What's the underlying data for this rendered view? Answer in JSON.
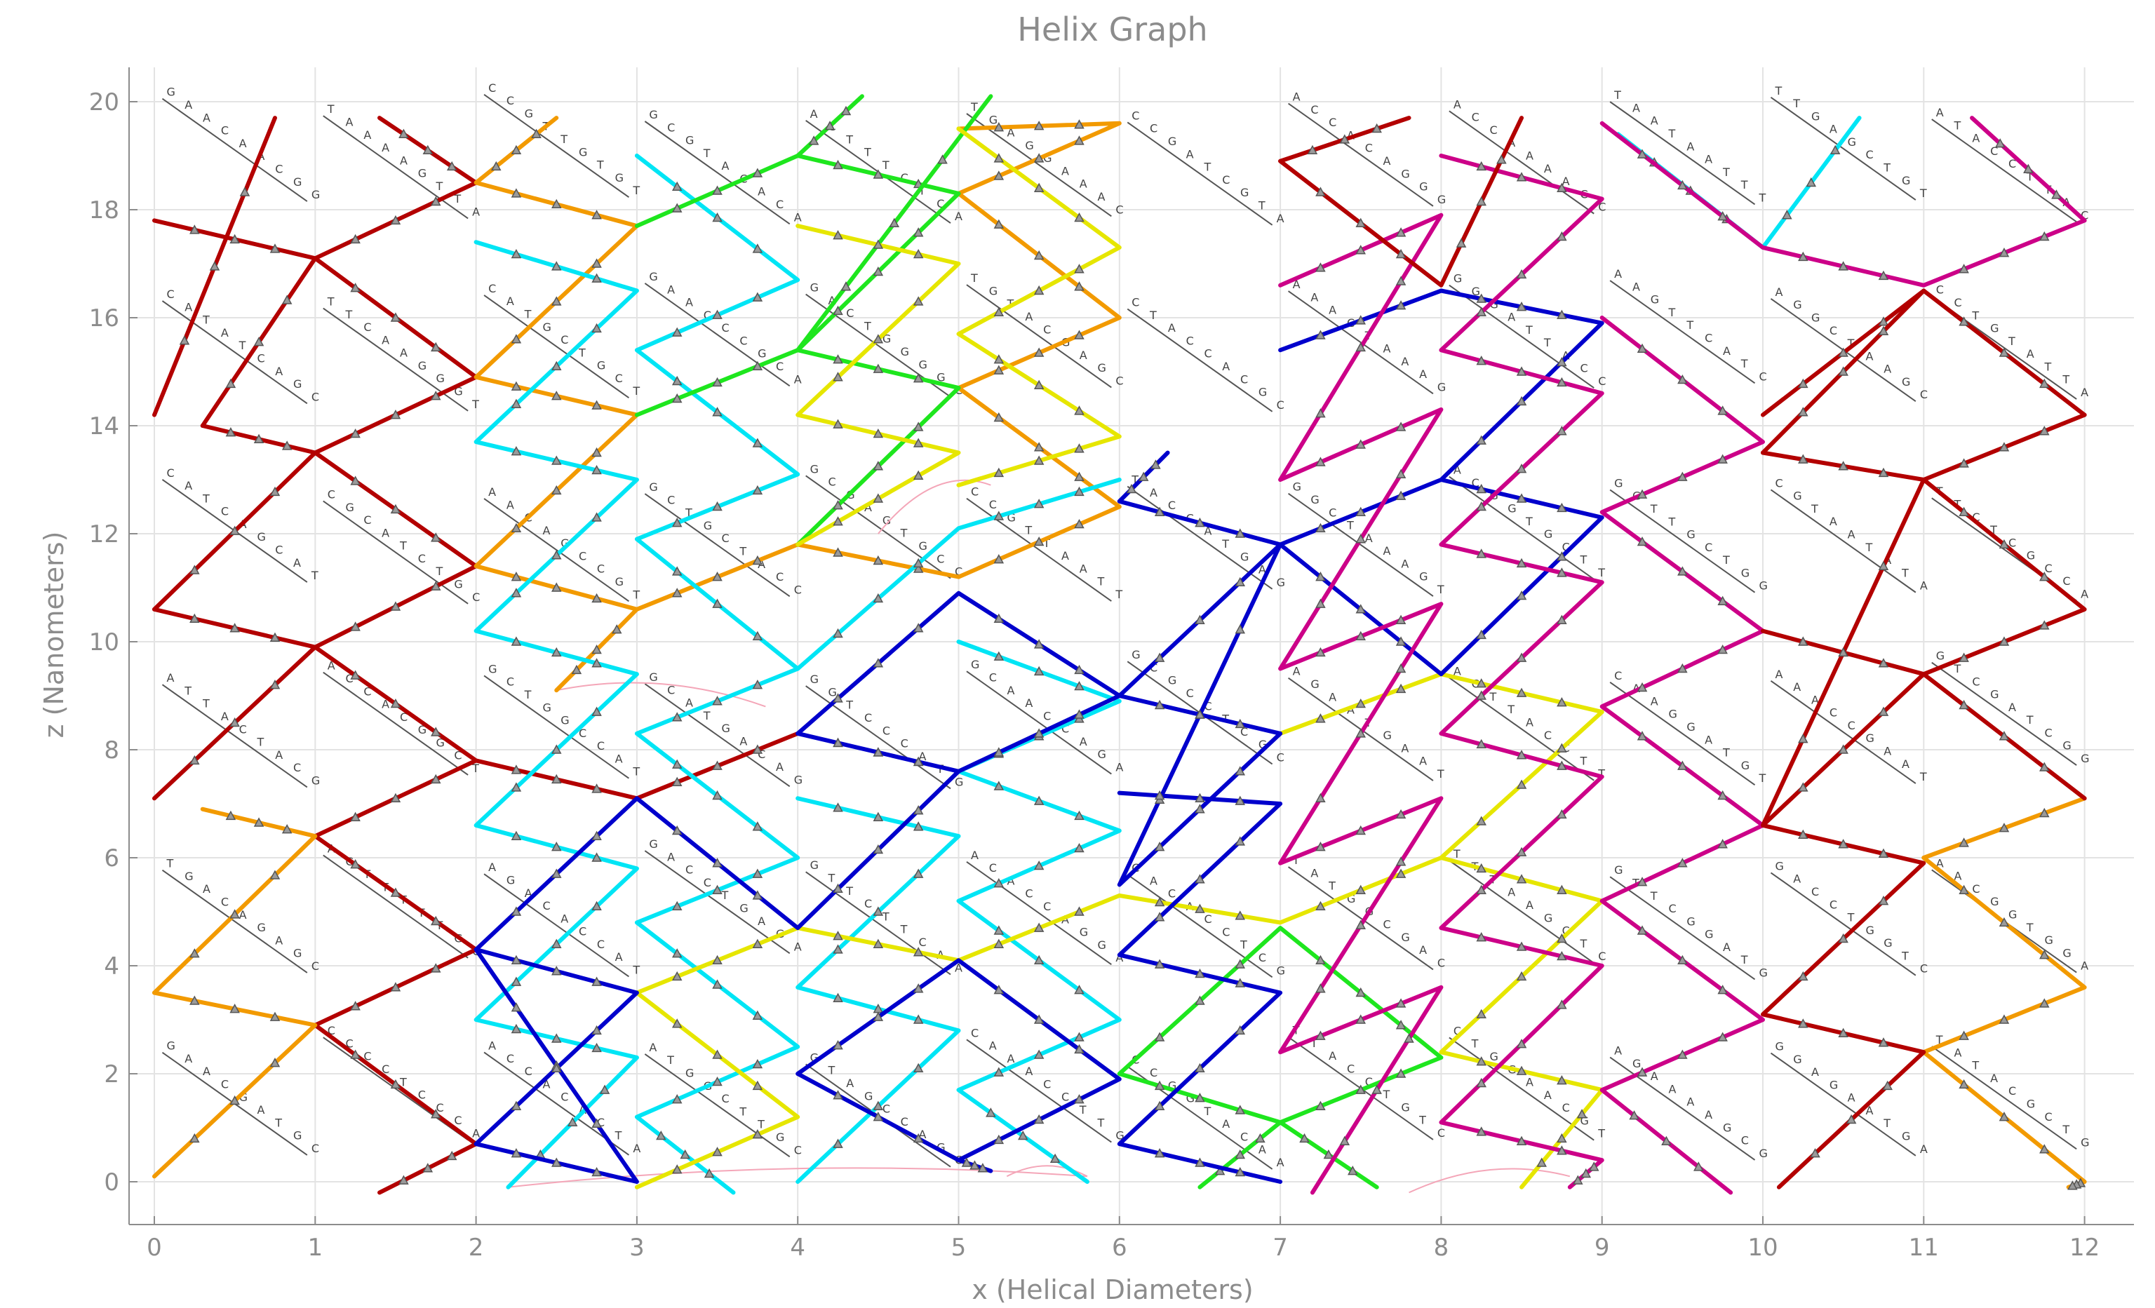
{
  "chart_data": {
    "type": "line",
    "title": "Helix Graph",
    "xlabel": "x (Helical Diameters)",
    "ylabel": "z (Nanometers)",
    "xlim": [
      -0.15,
      12.15
    ],
    "ylim": [
      -0.7,
      20.6
    ],
    "xticks": [
      0,
      1,
      2,
      3,
      4,
      5,
      6,
      7,
      8,
      9,
      10,
      11,
      12
    ],
    "yticks": [
      0,
      2,
      4,
      6,
      8,
      10,
      12,
      14,
      16,
      18,
      20
    ],
    "grid": true,
    "series": [
      {
        "color": "#b30000",
        "values": [
          [
            0.0,
            14.2
          ],
          [
            0.75,
            19.7
          ]
        ]
      },
      {
        "color": "#b30000",
        "values": [
          [
            0.0,
            17.8
          ],
          [
            1.0,
            17.1
          ],
          [
            0.3,
            14.0
          ]
        ]
      },
      {
        "color": "#b30000",
        "values": [
          [
            0.0,
            10.6
          ],
          [
            1.0,
            13.5
          ],
          [
            0.3,
            14.0
          ]
        ]
      },
      {
        "color": "#b30000",
        "values": [
          [
            0.0,
            7.1
          ],
          [
            1.0,
            9.9
          ]
        ]
      },
      {
        "color": "#b30000",
        "values": [
          [
            0.0,
            10.6
          ],
          [
            1.0,
            9.9
          ],
          [
            2.0,
            7.8
          ],
          [
            3.0,
            7.1
          ],
          [
            4.0,
            8.3
          ]
        ]
      },
      {
        "color": "#b30000",
        "values": [
          [
            1.4,
            19.7
          ],
          [
            2.0,
            18.5
          ],
          [
            1.0,
            17.1
          ],
          [
            2.0,
            14.9
          ],
          [
            1.0,
            13.5
          ],
          [
            2.0,
            11.4
          ],
          [
            1.0,
            9.9
          ]
        ]
      },
      {
        "color": "#b30000",
        "values": [
          [
            1.0,
            6.4
          ],
          [
            2.0,
            7.8
          ]
        ]
      },
      {
        "color": "#b30000",
        "values": [
          [
            1.0,
            6.4
          ],
          [
            2.0,
            4.3
          ],
          [
            1.0,
            2.9
          ],
          [
            2.0,
            0.7
          ],
          [
            1.4,
            -0.2
          ]
        ]
      },
      {
        "color": "#f29a00",
        "values": [
          [
            0.0,
            3.5
          ],
          [
            1.0,
            2.9
          ],
          [
            0.0,
            0.1
          ]
        ]
      },
      {
        "color": "#f29a00",
        "values": [
          [
            0.0,
            3.5
          ],
          [
            1.0,
            6.4
          ],
          [
            0.3,
            6.9
          ]
        ]
      },
      {
        "color": "#f29a00",
        "values": [
          [
            2.5,
            19.7
          ],
          [
            2.0,
            18.5
          ],
          [
            3.0,
            17.7
          ],
          [
            2.0,
            14.9
          ],
          [
            3.0,
            14.2
          ],
          [
            2.0,
            11.4
          ],
          [
            3.0,
            10.6
          ],
          [
            2.5,
            9.1
          ]
        ]
      },
      {
        "color": "#f29a00",
        "values": [
          [
            3.0,
            10.6
          ],
          [
            4.0,
            11.8
          ],
          [
            5.0,
            11.2
          ],
          [
            6.0,
            12.5
          ],
          [
            5.0,
            14.7
          ],
          [
            6.0,
            16.0
          ],
          [
            5.0,
            18.3
          ],
          [
            6.0,
            19.6
          ],
          [
            5.0,
            19.5
          ]
        ]
      },
      {
        "color": "#00e5f5",
        "values": [
          [
            2.0,
            17.4
          ],
          [
            3.0,
            16.5
          ],
          [
            2.0,
            13.7
          ],
          [
            3.0,
            13.0
          ],
          [
            2.0,
            10.2
          ],
          [
            3.0,
            9.4
          ],
          [
            2.0,
            6.6
          ],
          [
            3.0,
            5.8
          ],
          [
            2.0,
            3.0
          ],
          [
            3.0,
            2.3
          ],
          [
            2.2,
            -0.1
          ]
        ]
      },
      {
        "color": "#00e5f5",
        "values": [
          [
            3.0,
            19.0
          ],
          [
            4.0,
            16.7
          ],
          [
            3.0,
            15.4
          ],
          [
            4.0,
            13.1
          ],
          [
            3.0,
            11.9
          ],
          [
            4.0,
            9.5
          ],
          [
            3.0,
            8.3
          ],
          [
            4.0,
            6.0
          ],
          [
            3.0,
            4.8
          ],
          [
            4.0,
            2.5
          ],
          [
            3.0,
            1.2
          ],
          [
            3.6,
            -0.2
          ]
        ]
      },
      {
        "color": "#00e5f5",
        "values": [
          [
            4.0,
            9.5
          ],
          [
            5.0,
            12.1
          ],
          [
            6.0,
            13.0
          ]
        ]
      },
      {
        "color": "#00e5f5",
        "values": [
          [
            4.0,
            7.1
          ],
          [
            5.0,
            6.4
          ],
          [
            4.0,
            3.6
          ],
          [
            5.0,
            2.8
          ],
          [
            4.0,
            0.0
          ]
        ]
      },
      {
        "color": "#00e5f5",
        "values": [
          [
            5.0,
            10.0
          ],
          [
            6.0,
            8.9
          ],
          [
            5.0,
            7.6
          ],
          [
            6.0,
            6.5
          ],
          [
            5.0,
            5.2
          ],
          [
            6.0,
            3.0
          ],
          [
            5.0,
            1.7
          ],
          [
            5.8,
            0.0
          ]
        ]
      },
      {
        "color": "#00e5f5",
        "values": [
          [
            9.1,
            19.4
          ],
          [
            10.0,
            17.3
          ],
          [
            10.6,
            19.7
          ]
        ]
      },
      {
        "color": "#1ee61e",
        "values": [
          [
            3.0,
            17.7
          ],
          [
            4.0,
            19.0
          ],
          [
            5.0,
            18.3
          ],
          [
            4.0,
            15.4
          ],
          [
            5.0,
            14.7
          ],
          [
            4.0,
            11.8
          ]
        ]
      },
      {
        "color": "#1ee61e",
        "values": [
          [
            3.0,
            14.2
          ],
          [
            4.0,
            15.4
          ],
          [
            5.2,
            20.1
          ]
        ]
      },
      {
        "color": "#1ee61e",
        "values": [
          [
            4.0,
            19.0
          ],
          [
            4.4,
            20.1
          ]
        ]
      },
      {
        "color": "#1ee61e",
        "values": [
          [
            6.5,
            -0.1
          ],
          [
            7.0,
            1.1
          ],
          [
            8.0,
            2.3
          ],
          [
            7.0,
            4.7
          ],
          [
            6.0,
            2.0
          ],
          [
            7.0,
            1.1
          ],
          [
            7.6,
            -0.1
          ]
        ]
      },
      {
        "color": "#e6e600",
        "values": [
          [
            4.0,
            17.7
          ],
          [
            5.0,
            17.0
          ],
          [
            4.0,
            14.2
          ],
          [
            5.0,
            13.5
          ],
          [
            4.0,
            11.8
          ]
        ]
      },
      {
        "color": "#e6e600",
        "values": [
          [
            5.0,
            19.5
          ],
          [
            6.0,
            17.3
          ],
          [
            5.0,
            15.7
          ],
          [
            6.0,
            13.8
          ],
          [
            5.0,
            12.9
          ]
        ]
      },
      {
        "color": "#e6e600",
        "values": [
          [
            3.0,
            3.5
          ],
          [
            4.0,
            4.7
          ],
          [
            5.0,
            4.1
          ],
          [
            6.0,
            5.3
          ],
          [
            7.0,
            4.8
          ],
          [
            8.0,
            6.0
          ],
          [
            9.0,
            5.2
          ],
          [
            8.0,
            2.4
          ],
          [
            9.0,
            1.7
          ],
          [
            8.5,
            -0.1
          ]
        ]
      },
      {
        "color": "#e6e600",
        "values": [
          [
            3.0,
            3.5
          ],
          [
            4.0,
            1.2
          ],
          [
            3.0,
            -0.1
          ]
        ]
      },
      {
        "color": "#e6e600",
        "values": [
          [
            7.0,
            8.3
          ],
          [
            8.0,
            9.4
          ],
          [
            9.0,
            8.7
          ],
          [
            8.0,
            6.0
          ]
        ]
      },
      {
        "color": "#0000cc",
        "values": [
          [
            2.0,
            0.7
          ],
          [
            3.0,
            0.0
          ],
          [
            2.0,
            4.3
          ],
          [
            3.0,
            3.5
          ],
          [
            2.0,
            0.7
          ]
        ]
      },
      {
        "color": "#0000cc",
        "values": [
          [
            2.0,
            4.3
          ],
          [
            3.0,
            7.1
          ],
          [
            4.0,
            4.7
          ],
          [
            5.0,
            7.6
          ],
          [
            4.0,
            8.3
          ],
          [
            5.0,
            7.6
          ],
          [
            6.0,
            9.0
          ],
          [
            5.0,
            10.9
          ],
          [
            4.0,
            8.3
          ]
        ]
      },
      {
        "color": "#0000cc",
        "values": [
          [
            4.0,
            2.0
          ],
          [
            5.0,
            4.1
          ],
          [
            6.0,
            1.9
          ],
          [
            5.0,
            0.4
          ],
          [
            4.0,
            2.0
          ]
        ]
      },
      {
        "color": "#0000cc",
        "values": [
          [
            5.2,
            0.2
          ],
          [
            5.0,
            0.4
          ]
        ]
      },
      {
        "color": "#0000cc",
        "values": [
          [
            6.0,
            12.6
          ],
          [
            7.0,
            11.8
          ],
          [
            6.0,
            9.0
          ],
          [
            7.0,
            8.3
          ],
          [
            6.0,
            5.5
          ],
          [
            7.0,
            11.8
          ],
          [
            8.0,
            13.0
          ],
          [
            9.0,
            12.3
          ],
          [
            8.0,
            9.4
          ],
          [
            7.0,
            11.8
          ]
        ]
      },
      {
        "color": "#0000cc",
        "values": [
          [
            6.0,
            12.6
          ],
          [
            6.3,
            13.5
          ]
        ]
      },
      {
        "color": "#0000cc",
        "values": [
          [
            7.0,
            15.4
          ],
          [
            8.0,
            16.5
          ],
          [
            9.0,
            15.9
          ],
          [
            8.0,
            13.0
          ]
        ]
      },
      {
        "color": "#0000cc",
        "values": [
          [
            6.0,
            7.2
          ],
          [
            7.0,
            7.0
          ],
          [
            6.0,
            4.2
          ],
          [
            7.0,
            3.5
          ],
          [
            6.0,
            0.7
          ],
          [
            7.0,
            0.0
          ]
        ]
      },
      {
        "color": "#cc0088",
        "values": [
          [
            7.0,
            16.6
          ],
          [
            8.0,
            17.9
          ],
          [
            7.0,
            13.0
          ],
          [
            8.0,
            14.3
          ],
          [
            7.0,
            9.5
          ],
          [
            8.0,
            10.7
          ],
          [
            7.0,
            5.9
          ],
          [
            8.0,
            7.1
          ],
          [
            7.0,
            2.4
          ],
          [
            8.0,
            3.6
          ],
          [
            7.2,
            -0.2
          ]
        ]
      },
      {
        "color": "#cc0088",
        "values": [
          [
            8.0,
            19.0
          ],
          [
            9.0,
            18.2
          ],
          [
            8.0,
            15.4
          ],
          [
            9.0,
            14.6
          ],
          [
            8.0,
            11.8
          ],
          [
            9.0,
            11.1
          ],
          [
            8.0,
            8.3
          ],
          [
            9.0,
            7.5
          ],
          [
            8.0,
            4.7
          ],
          [
            9.0,
            4.0
          ],
          [
            8.0,
            1.1
          ],
          [
            9.0,
            0.4
          ],
          [
            8.8,
            -0.1
          ]
        ]
      },
      {
        "color": "#cc0088",
        "values": [
          [
            9.0,
            19.6
          ],
          [
            10.0,
            17.3
          ],
          [
            11.0,
            16.6
          ],
          [
            12.0,
            17.8
          ],
          [
            11.3,
            19.7
          ]
        ]
      },
      {
        "color": "#cc0088",
        "values": [
          [
            9.0,
            16.0
          ],
          [
            10.0,
            13.7
          ],
          [
            9.0,
            12.4
          ],
          [
            10.0,
            10.2
          ],
          [
            9.0,
            8.8
          ],
          [
            10.0,
            6.6
          ],
          [
            9.0,
            5.2
          ],
          [
            10.0,
            3.0
          ],
          [
            9.0,
            1.7
          ],
          [
            9.8,
            -0.2
          ]
        ]
      },
      {
        "color": "#f29a00",
        "values": [
          [
            11.0,
            6.0
          ],
          [
            12.0,
            7.1
          ]
        ]
      },
      {
        "color": "#f29a00",
        "values": [
          [
            11.0,
            2.4
          ],
          [
            12.0,
            3.6
          ],
          [
            11.0,
            6.0
          ]
        ]
      },
      {
        "color": "#f29a00",
        "values": [
          [
            11.0,
            2.4
          ],
          [
            12.0,
            0.0
          ],
          [
            11.9,
            -0.1
          ]
        ]
      },
      {
        "color": "#b30000",
        "values": [
          [
            7.0,
            18.9
          ],
          [
            8.0,
            16.6
          ],
          [
            8.5,
            19.7
          ]
        ]
      },
      {
        "color": "#b30000",
        "values": [
          [
            7.0,
            18.9
          ],
          [
            7.8,
            19.7
          ]
        ]
      },
      {
        "color": "#b30000",
        "values": [
          [
            10.0,
            14.2
          ],
          [
            11.0,
            16.5
          ],
          [
            12.0,
            14.2
          ]
        ]
      },
      {
        "color": "#b30000",
        "values": [
          [
            10.0,
            13.5
          ],
          [
            11.0,
            13.0
          ],
          [
            12.0,
            10.6
          ],
          [
            11.0,
            9.4
          ],
          [
            12.0,
            7.1
          ]
        ]
      },
      {
        "color": "#b30000",
        "values": [
          [
            10.0,
            10.2
          ],
          [
            11.0,
            9.4
          ],
          [
            10.0,
            6.6
          ],
          [
            11.0,
            5.9
          ],
          [
            10.0,
            3.1
          ],
          [
            11.0,
            2.4
          ],
          [
            10.1,
            -0.1
          ]
        ]
      },
      {
        "color": "#b30000",
        "values": [
          [
            10.0,
            13.5
          ],
          [
            11.0,
            16.5
          ]
        ]
      },
      {
        "color": "#b30000",
        "values": [
          [
            10.0,
            6.6
          ],
          [
            11.0,
            13.0
          ],
          [
            12.0,
            14.2
          ]
        ]
      }
    ]
  }
}
